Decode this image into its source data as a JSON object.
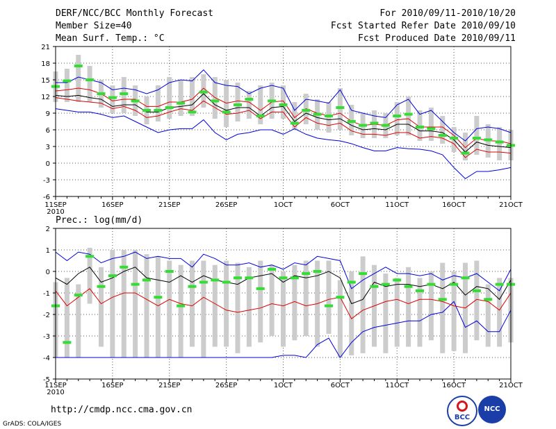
{
  "header": {
    "title": "DERF/NCC/BCC Monthly Forecast",
    "member_size": "Member Size=40",
    "variable": "Mean Surf. Temp.: °C",
    "forecast_period": "For 2010/09/11-2010/10/20",
    "fcst_started": "Fcst Started Refer Date 2010/09/10",
    "fcst_produced": "Fcst Produced Date 2010/09/11"
  },
  "footer": {
    "url": "http://cmdp.ncc.cma.gov.cn",
    "credit": "GrADS: COLA/IGES",
    "logo_bcc": "BCC",
    "logo_ncc": "NCC"
  },
  "colors": {
    "box": "#cccccc",
    "obs": "#33dd33",
    "envelope": "#0000dd",
    "spread": "#dd0000",
    "mean": "#000000",
    "grid": "#555555"
  },
  "chart_data": [
    {
      "type": "line",
      "title": "Mean Surf. Temp.: °C",
      "xlabel": "",
      "ylabel": "",
      "ylim": [
        -6,
        21
      ],
      "yticks": [
        21,
        18,
        15,
        12,
        9,
        6,
        3,
        0,
        -3,
        -6
      ],
      "xlim": [
        1,
        41
      ],
      "xticks": [
        {
          "x": 1,
          "label": "11SEP"
        },
        {
          "x": 6,
          "label": "16SEP"
        },
        {
          "x": 11,
          "label": "21SEP"
        },
        {
          "x": 16,
          "label": "26SEP"
        },
        {
          "x": 21,
          "label": "1OCT"
        },
        {
          "x": 26,
          "label": "6OCT"
        },
        {
          "x": 31,
          "label": "11OCT"
        },
        {
          "x": 36,
          "label": "16OCT"
        },
        {
          "x": 41,
          "label": "21OCT"
        }
      ],
      "year_label": "2010",
      "series": [
        {
          "name": "max",
          "values": [
            9.8,
            9.5,
            9.2,
            9.2,
            8.8,
            8.2,
            8.5,
            7.5,
            6.5,
            5.5,
            6,
            6.2,
            6.2,
            7.8,
            5.5,
            4.2,
            5.2,
            5.5,
            6,
            6,
            5.2,
            6.2,
            5.2,
            4.5,
            4.2,
            4,
            3.5,
            2.8,
            2.2,
            2.2,
            2.8,
            2.6,
            2.5,
            2.2,
            1.5,
            -0.8,
            -2.8,
            -1.5,
            -1.5,
            -1.2,
            -0.8
          ]
        },
        {
          "name": "p10",
          "values": [
            11.8,
            11.5,
            11.2,
            11,
            10.8,
            9.8,
            10.2,
            9.5,
            8.2,
            8.5,
            9.2,
            9.8,
            9.5,
            11.2,
            10,
            8.8,
            9,
            9.5,
            8,
            9.2,
            9.2,
            6.5,
            8.2,
            7.2,
            6.8,
            7.2,
            5.8,
            5.2,
            5.2,
            5,
            5.5,
            5.5,
            4.5,
            4.8,
            4.5,
            3.5,
            1,
            2.5,
            2,
            2,
            1.8
          ]
        },
        {
          "name": "mean",
          "values": [
            12.2,
            12,
            12.2,
            11.8,
            11.5,
            10.2,
            10.5,
            10.5,
            9.2,
            9.2,
            10,
            10.2,
            10.5,
            12.5,
            10.5,
            9.5,
            10,
            10,
            8.5,
            10,
            10.2,
            7.5,
            9,
            8.2,
            7.8,
            8,
            6.8,
            6,
            6.2,
            6,
            7,
            7,
            5.8,
            5.8,
            5.5,
            4.2,
            2,
            3.8,
            3.2,
            3,
            2.8
          ]
        },
        {
          "name": "p90",
          "values": [
            13,
            13.2,
            13.5,
            13.2,
            12.5,
            11.2,
            11.5,
            11.5,
            10.2,
            10.2,
            11,
            11,
            11.5,
            13.5,
            11.8,
            10.8,
            11.2,
            11,
            9.5,
            11,
            11.2,
            8.2,
            9.8,
            9,
            8.5,
            9,
            7.5,
            6.8,
            7,
            6.8,
            7.8,
            8,
            6.5,
            6.5,
            6.5,
            5,
            2.8,
            4.5,
            4,
            4,
            3.5
          ]
        },
        {
          "name": "min",
          "values": [
            14.5,
            14.5,
            15.5,
            15,
            14.5,
            13.2,
            13.5,
            13.2,
            12.5,
            13.2,
            14.5,
            15,
            14.8,
            16.8,
            14.5,
            14,
            13.8,
            12.5,
            13.5,
            14,
            13.5,
            9.5,
            11.5,
            11.2,
            10.8,
            13.2,
            9.5,
            9,
            8.5,
            8.2,
            10.5,
            11.5,
            8.8,
            9.5,
            7.5,
            5.5,
            4,
            6.2,
            6.5,
            6.2,
            5.5
          ]
        },
        {
          "name": "obs",
          "values": [
            13.8,
            14.8,
            17.5,
            15,
            12.5,
            11.8,
            12.5,
            11.2,
            9.5,
            9.5,
            10,
            10.8,
            9.2,
            12.8,
            11.2,
            9.2,
            10.5,
            11.5,
            8.5,
            11.2,
            10.5,
            7.2,
            9.5,
            8.8,
            8.5,
            10,
            7.5,
            6.8,
            7.2,
            6.8,
            8.5,
            8.8,
            6.5,
            6.2,
            5,
            4.5,
            1.8,
            4.5,
            4.2,
            3.8,
            3.2
          ]
        }
      ],
      "box_low": [
        11,
        11,
        11,
        11,
        10,
        9,
        9,
        8.5,
        7,
        7.5,
        8,
        8.5,
        8.5,
        10,
        8,
        6.5,
        7.5,
        8,
        7,
        8,
        8,
        6,
        7,
        6,
        5.5,
        6,
        5,
        4.5,
        4.5,
        4.5,
        5,
        5,
        4,
        4,
        3.5,
        2,
        0.5,
        1.5,
        1,
        0.5,
        0.5
      ],
      "box_high": [
        16.5,
        17,
        19.5,
        17.5,
        15,
        14,
        15.5,
        14,
        12,
        14,
        15.5,
        15,
        15.5,
        16,
        15.5,
        15,
        14.5,
        13,
        14,
        14.5,
        14,
        11,
        12.5,
        11.5,
        11,
        13.5,
        10.5,
        9,
        9.5,
        9,
        11,
        12,
        9.5,
        10,
        8.5,
        6.5,
        5.5,
        8.5,
        7,
        6.5,
        6
      ]
    },
    {
      "type": "line",
      "title": "Prec.: log(mm/d)",
      "xlabel": "",
      "ylabel": "",
      "ylim": [
        -5,
        2
      ],
      "yticks": [
        2,
        1,
        0,
        -1,
        -2,
        -3,
        -4,
        -5
      ],
      "xlim": [
        1,
        41
      ],
      "xticks": [
        {
          "x": 1,
          "label": "11SEP"
        },
        {
          "x": 6,
          "label": "16SEP"
        },
        {
          "x": 11,
          "label": "21SEP"
        },
        {
          "x": 16,
          "label": "26SEP"
        },
        {
          "x": 21,
          "label": "1OCT"
        },
        {
          "x": 26,
          "label": "6OCT"
        },
        {
          "x": 31,
          "label": "11OCT"
        },
        {
          "x": 36,
          "label": "16OCT"
        },
        {
          "x": 41,
          "label": "21OCT"
        }
      ],
      "year_label": "2010",
      "series": [
        {
          "name": "min",
          "values": [
            -4,
            -4,
            -4,
            -4,
            -4,
            -4,
            -4,
            -4,
            -4,
            -4,
            -4,
            -4,
            -4,
            -4,
            -4,
            -4,
            -4,
            -4,
            -4,
            -4,
            -3.9,
            -3.9,
            -4,
            -3.4,
            -3.1,
            -4,
            -3.3,
            -2.8,
            -2.6,
            -2.5,
            -2.4,
            -2.3,
            -2.3,
            -2,
            -1.9,
            -1.4,
            -2.6,
            -2.3,
            -2.8,
            -2.8,
            -1.8
          ]
        },
        {
          "name": "p10",
          "values": [
            -0.9,
            -1.6,
            -1.2,
            -0.8,
            -1.5,
            -1.2,
            -1,
            -1,
            -1.3,
            -1.6,
            -1.3,
            -1.5,
            -1.6,
            -1.2,
            -1.5,
            -1.8,
            -1.9,
            -1.8,
            -1.7,
            -1.5,
            -1.6,
            -1.4,
            -1.6,
            -1.5,
            -1.3,
            -1.2,
            -2.2,
            -1.8,
            -1.6,
            -1.4,
            -1.3,
            -1.5,
            -1.3,
            -1.3,
            -1.4,
            -1.6,
            -1.7,
            -1.3,
            -1.4,
            -1.8,
            -1
          ]
        },
        {
          "name": "mean",
          "values": [
            -0.3,
            -0.6,
            -0.1,
            0.2,
            -0.5,
            -0.3,
            0,
            0.2,
            -0.3,
            -0.4,
            -0.5,
            -0.2,
            -0.5,
            -0.2,
            -0.4,
            -0.5,
            -0.6,
            -0.3,
            -0.2,
            -0.1,
            -0.5,
            -0.2,
            -0.3,
            -0.2,
            0,
            -0.3,
            -1.5,
            -1.3,
            -0.5,
            -0.7,
            -0.6,
            -0.6,
            -0.7,
            -0.6,
            -0.8,
            -0.5,
            -1.1,
            -0.7,
            -0.8,
            -1.3,
            -0.4
          ]
        },
        {
          "name": "max",
          "values": [
            0.9,
            0.5,
            0.9,
            0.8,
            0.4,
            0.6,
            0.7,
            0.9,
            0.6,
            0.7,
            0.6,
            0.6,
            0.2,
            0.8,
            0.6,
            0.3,
            0.3,
            0.4,
            0.2,
            0.3,
            0.1,
            0.4,
            0.3,
            0.7,
            0.6,
            0.5,
            -0.8,
            -0.4,
            -0.1,
            0.2,
            -0.1,
            -0.1,
            -0.2,
            -0.1,
            -0.4,
            -0.2,
            -0.3,
            -0.1,
            -0.5,
            -0.9,
            0.1
          ]
        },
        {
          "name": "obs",
          "values": [
            -1.6,
            -3.3,
            -1.1,
            0.7,
            -0.7,
            -0.2,
            0.2,
            -0.6,
            -0.4,
            -1.2,
            0,
            -1.6,
            -0.7,
            -0.5,
            -0.4,
            -0.5,
            -0.3,
            -0.3,
            -0.8,
            0.1,
            -0.3,
            -0.3,
            -0.1,
            0,
            -1.6,
            -1.2,
            -0.5,
            -0.1,
            -0.7,
            -0.6,
            -0.4,
            -0.7,
            -0.9,
            -0.6,
            -1.3,
            -0.6,
            -0.3,
            -0.9,
            -1.3,
            -0.6,
            -0.6
          ]
        }
      ],
      "box_low": [
        -4,
        -4,
        -4,
        -1.5,
        -3.5,
        -4,
        -4,
        -4,
        -4,
        -4,
        -4,
        -4,
        -3.5,
        -4,
        -3.5,
        -3.5,
        -3.8,
        -3.5,
        -3.3,
        -3,
        -3.5,
        -3.2,
        -3,
        -3.5,
        -2.9,
        -4,
        -3.9,
        -3.8,
        -3.5,
        -3.8,
        -3.5,
        -3.5,
        -3.5,
        -3.2,
        -3.8,
        -3.7,
        -3.8,
        -3.2,
        -3.5,
        -3.5,
        -3.3
      ],
      "box_high": [
        -0.5,
        -0.3,
        -0.6,
        1.1,
        0.2,
        1,
        1,
        1,
        0.8,
        0.7,
        0.5,
        0.3,
        0.5,
        0.5,
        0.3,
        0.5,
        0.4,
        0.2,
        0.5,
        0.3,
        0,
        0.3,
        0.5,
        0.5,
        0.5,
        -0.4,
        0,
        0.7,
        0.3,
        -0.1,
        -0.3,
        0.2,
        -0.3,
        0,
        0.4,
        0,
        0.4,
        0.5,
        -0.6,
        -0.3,
        -0.3
      ]
    }
  ]
}
